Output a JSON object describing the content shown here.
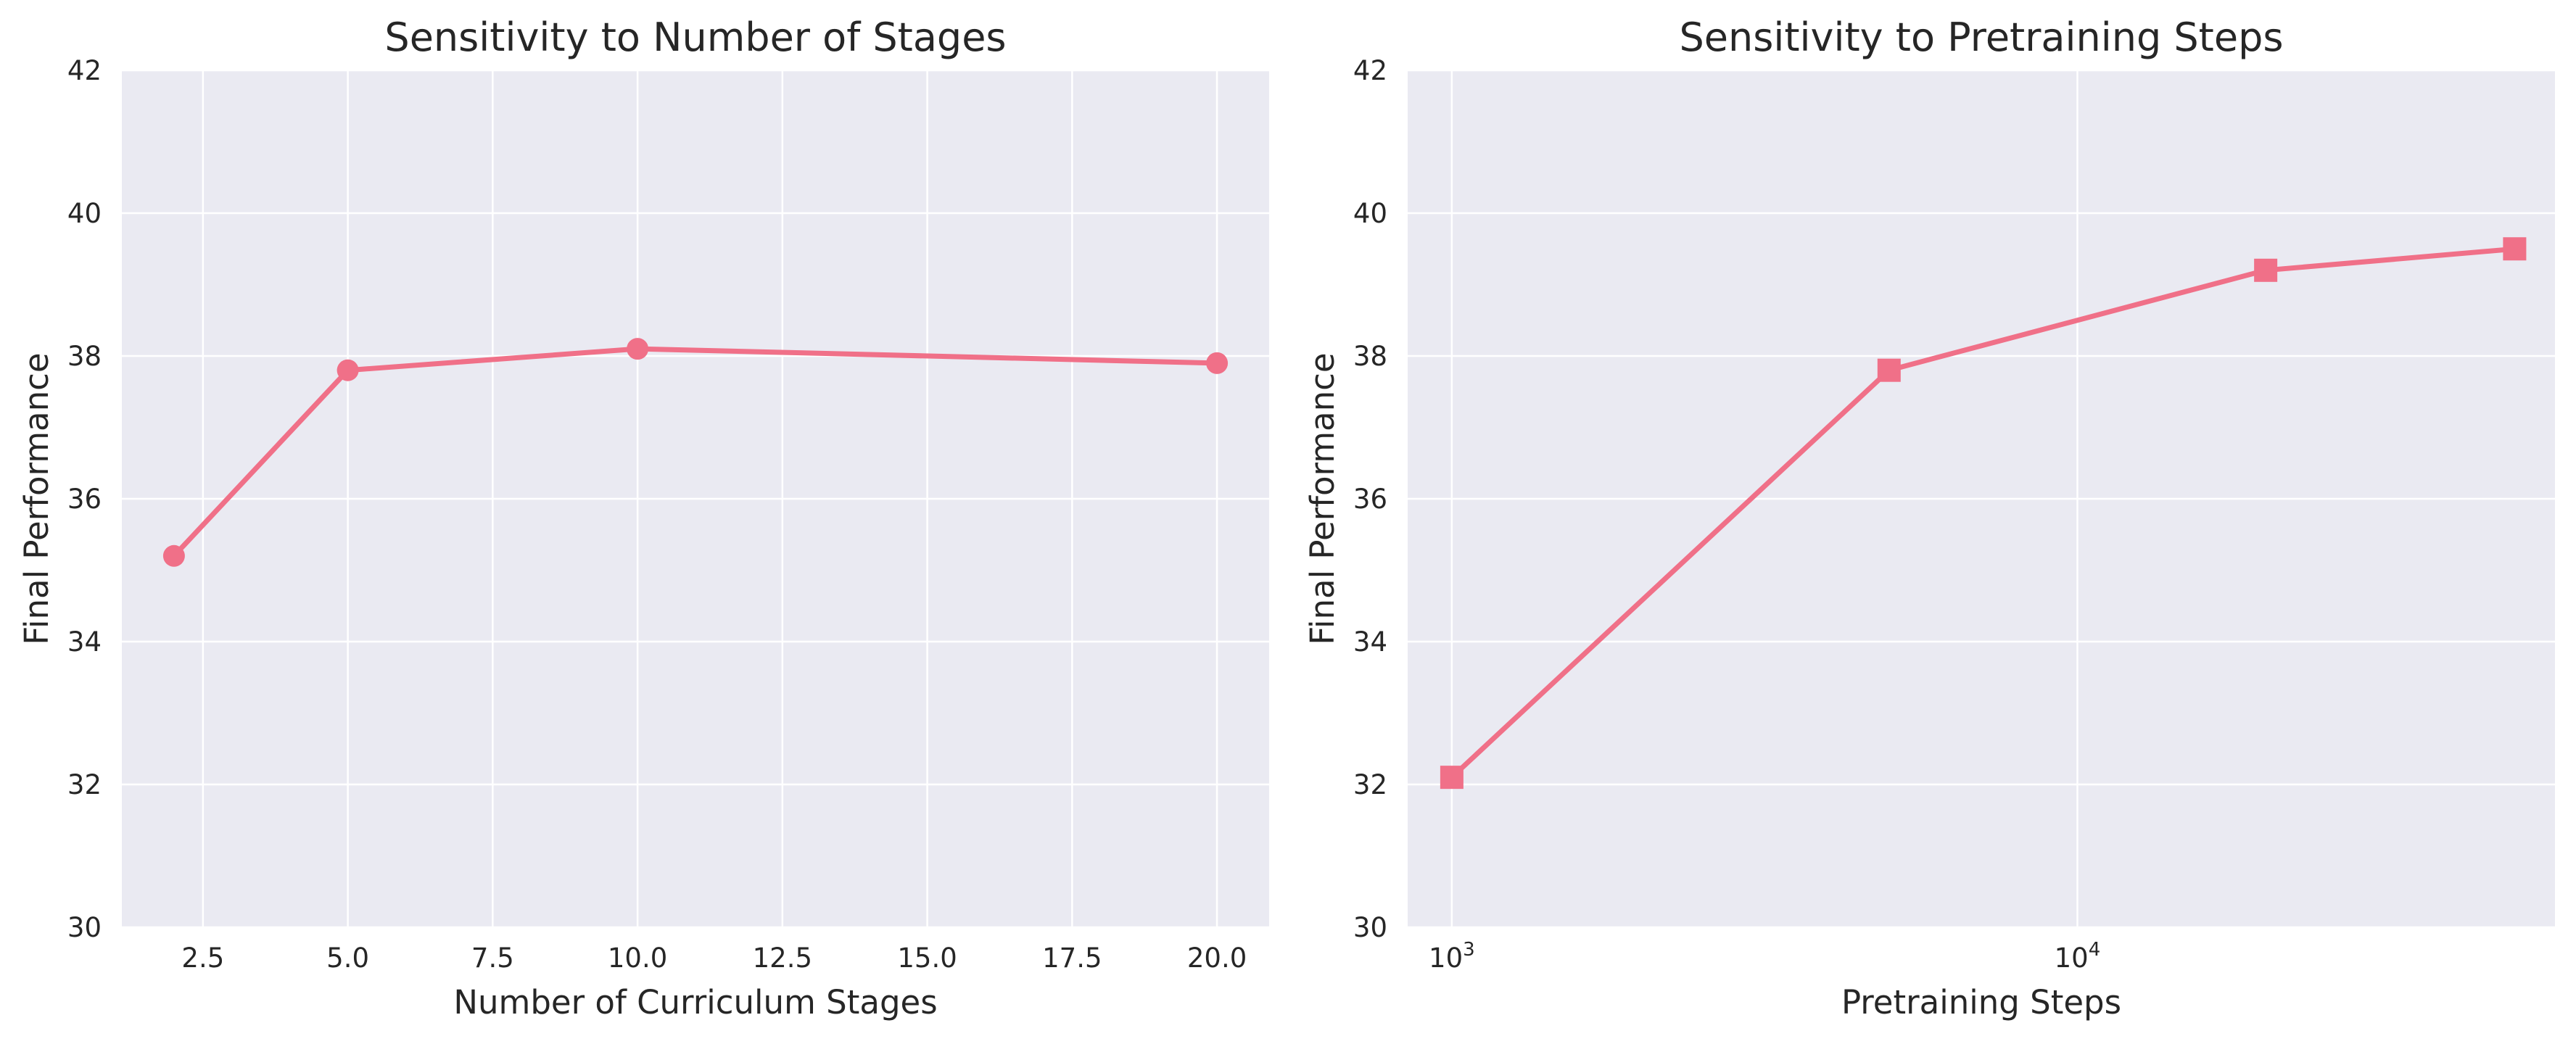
{
  "figure": {
    "background": "#ffffff",
    "plot_background": "#eaeaf2",
    "grid_color": "#ffffff"
  },
  "chart_data": [
    {
      "type": "line",
      "title": "Sensitivity to Number of Stages",
      "xlabel": "Number of Curriculum Stages",
      "ylabel": "Final Performance",
      "x_scale": "linear",
      "xlim": [
        1.1,
        20.9
      ],
      "ylim": [
        30,
        42
      ],
      "xticks": [
        2.5,
        5.0,
        7.5,
        10.0,
        12.5,
        15.0,
        17.5,
        20.0
      ],
      "xtick_labels": [
        "2.5",
        "5.0",
        "7.5",
        "10.0",
        "12.5",
        "15.0",
        "17.5",
        "20.0"
      ],
      "yticks": [
        30,
        32,
        34,
        36,
        38,
        40,
        42
      ],
      "ytick_labels": [
        "30",
        "32",
        "34",
        "36",
        "38",
        "40",
        "42"
      ],
      "grid": true,
      "marker": "circle",
      "color": "#f07088",
      "series": [
        {
          "x": [
            2,
            5,
            10,
            20
          ],
          "y": [
            35.2,
            37.8,
            38.1,
            37.9
          ]
        }
      ]
    },
    {
      "type": "line",
      "title": "Sensitivity to Pretraining Steps",
      "xlabel": "Pretraining Steps",
      "ylabel": "Final Performance",
      "x_scale": "log",
      "xlim": [
        850,
        58000
      ],
      "ylim": [
        30,
        42
      ],
      "xticks": [
        1000,
        10000
      ],
      "xtick_labels": [
        {
          "base": "10",
          "exp": "3"
        },
        {
          "base": "10",
          "exp": "4"
        }
      ],
      "yticks": [
        30,
        32,
        34,
        36,
        38,
        40,
        42
      ],
      "ytick_labels": [
        "30",
        "32",
        "34",
        "36",
        "38",
        "40",
        "42"
      ],
      "grid": true,
      "marker": "square",
      "color": "#f07088",
      "series": [
        {
          "x": [
            1000,
            5000,
            20000,
            50000
          ],
          "y": [
            32.1,
            37.8,
            39.2,
            39.5
          ]
        }
      ]
    }
  ]
}
